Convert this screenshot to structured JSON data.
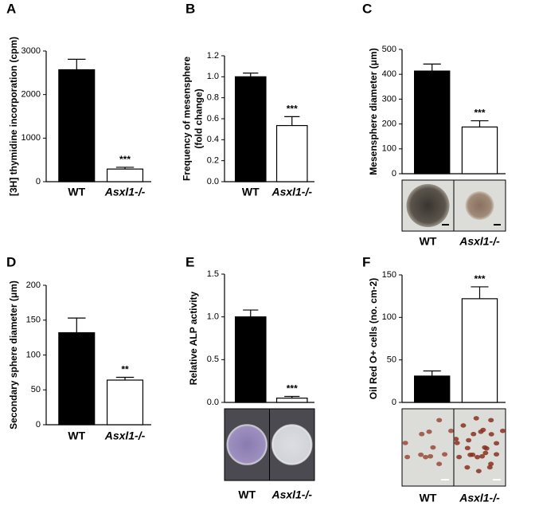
{
  "chart_data": [
    {
      "type": "bar",
      "panel": "A",
      "ylabel": [
        "[3H] thymidine incorporation (cpm)"
      ],
      "categories": [
        "WT",
        "Asxl1-/-"
      ],
      "values": [
        2570,
        290
      ],
      "errors": [
        240,
        40
      ],
      "colors": [
        "#000000",
        "#ffffff"
      ],
      "significance": [
        null,
        "***"
      ],
      "ylim": [
        0,
        3000
      ],
      "yticks": [
        0,
        1000,
        2000,
        3000
      ]
    },
    {
      "type": "bar",
      "panel": "B",
      "ylabel": [
        "Frequency of mesensphere",
        "(fold change)"
      ],
      "categories": [
        "WT",
        "Asxl1-/-"
      ],
      "values": [
        1.0,
        0.535
      ],
      "errors": [
        0.035,
        0.085
      ],
      "colors": [
        "#000000",
        "#ffffff"
      ],
      "significance": [
        null,
        "***"
      ],
      "ylim": [
        0,
        1.2
      ],
      "yticks": [
        {
          "value": 0,
          "label": "0.0"
        },
        0.2,
        0.4,
        0.6,
        0.8,
        {
          "value": 1,
          "label": "1.0"
        },
        1.2
      ]
    },
    {
      "type": "bar",
      "panel": "C",
      "ylabel": [
        "Mesensphere diameter (μm)"
      ],
      "categories": [
        "WT",
        "Asxl1-/-"
      ],
      "values": [
        413,
        188
      ],
      "errors": [
        28,
        25
      ],
      "colors": [
        "#000000",
        "#ffffff"
      ],
      "significance": [
        null,
        "***"
      ],
      "ylim": [
        0,
        500
      ],
      "yticks": [
        0,
        100,
        200,
        300,
        400,
        500
      ]
    },
    {
      "type": "bar",
      "panel": "D",
      "ylabel": [
        "Secondary sphere diameter (μm)"
      ],
      "categories": [
        "WT",
        "Asxl1-/-"
      ],
      "values": [
        132,
        64
      ],
      "errors": [
        21,
        4
      ],
      "colors": [
        "#000000",
        "#ffffff"
      ],
      "significance": [
        null,
        "**"
      ],
      "ylim": [
        0,
        200
      ],
      "yticks": [
        0,
        50,
        100,
        150,
        200
      ]
    },
    {
      "type": "bar",
      "panel": "E",
      "ylabel": [
        "Relative ALP activity"
      ],
      "categories": [
        "WT",
        "Asxl1-/-"
      ],
      "values": [
        1.0,
        0.05
      ],
      "errors": [
        0.08,
        0.02
      ],
      "colors": [
        "#000000",
        "#ffffff"
      ],
      "significance": [
        null,
        "***"
      ],
      "ylim": [
        0,
        1.5
      ],
      "yticks": [
        {
          "value": 0,
          "label": "0.0"
        },
        0.5,
        {
          "value": 1,
          "label": "1.0"
        },
        1.5
      ]
    },
    {
      "type": "bar",
      "panel": "F",
      "ylabel": [
        "Oil Red O+ cells (no. cm-2)"
      ],
      "categories": [
        "WT",
        "Asxl1-/-"
      ],
      "values": [
        31,
        122
      ],
      "errors": [
        6,
        14
      ],
      "colors": [
        "#000000",
        "#ffffff"
      ],
      "significance": [
        null,
        "***"
      ],
      "ylim": [
        0,
        150
      ],
      "yticks": [
        0,
        50,
        100,
        150
      ]
    }
  ]
}
